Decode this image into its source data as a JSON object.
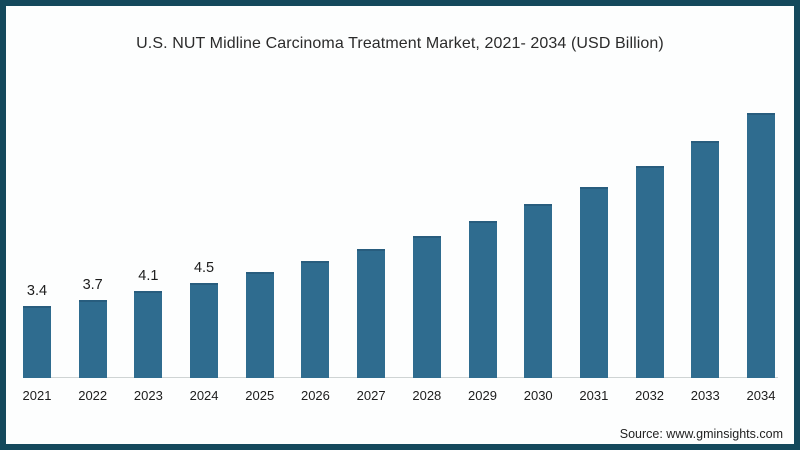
{
  "title": "U.S. NUT Midline Carcinoma Treatment Market, 2021- 2034 (USD Billion)",
  "source_note": "Source: www.gminsights.com",
  "colors": {
    "frame_border": "#14495c",
    "bar_fill": "#2f6c8f",
    "bar_top_edge": "#285d7e",
    "axis_line": "#cfd4d4",
    "text": "#1d1d1d",
    "background": "#fdfefe"
  },
  "chart_data": {
    "type": "bar",
    "title": "U.S. NUT Midline Carcinoma Treatment Market, 2021- 2034 (USD Billion)",
    "xlabel": "",
    "ylabel": "",
    "units": "USD Billion",
    "ylim": [
      0,
      13
    ],
    "grid": false,
    "legend": "none",
    "categories": [
      "2021",
      "2022",
      "2023",
      "2024",
      "2025",
      "2026",
      "2027",
      "2028",
      "2029",
      "2030",
      "2031",
      "2032",
      "2033",
      "2034"
    ],
    "values": [
      3.4,
      3.7,
      4.1,
      4.5,
      5.0,
      5.5,
      6.1,
      6.7,
      7.4,
      8.2,
      9.0,
      10.0,
      11.2,
      12.5
    ],
    "data_labels_shown": [
      "3.4",
      "3.7",
      "4.1",
      "4.5",
      "",
      "",
      "",
      "",
      "",
      "",
      "",
      "",
      "",
      ""
    ]
  }
}
